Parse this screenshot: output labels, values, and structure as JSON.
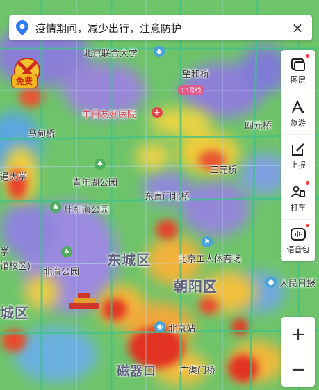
{
  "notice": {
    "text": "疫情期间，减少出行，注意防护",
    "close": "×"
  },
  "badge": {
    "text": "免费"
  },
  "toolbar": [
    {
      "name": "layers",
      "label": "图层",
      "dot": true
    },
    {
      "name": "travel",
      "label": "旅游",
      "dot": false
    },
    {
      "name": "report",
      "label": "上报",
      "dot": false
    },
    {
      "name": "taxi",
      "label": "打车",
      "dot": true
    },
    {
      "name": "voice",
      "label": "语音包",
      "dot": true
    }
  ],
  "zoom": {
    "in": "+",
    "out": "−"
  },
  "places": {
    "buu": "北京联合大学",
    "wanghe": "望和桥",
    "line13": "13号线",
    "hospital": "中日友好医院",
    "sihuan": "四元桥",
    "madian": "马甸桥",
    "tongda": "通大学",
    "qingnianhu": "青年湖公园",
    "sanyuan": "三元桥",
    "dongzhimen": "东直门北桥",
    "shichahai": "什刹海公园",
    "xue": "学",
    "xiaoqu": "馆校区)",
    "beihai": "北海公园",
    "dongcheng": "东城区",
    "gongti": "北京工人体育场",
    "chaoyang": "朝阳区",
    "renminri": "人民日报",
    "chengqu": "城区",
    "bjzhan": "北京站",
    "ciqikou": "磁器口",
    "guangqumen": "广渠门桥"
  },
  "colors": {
    "accent": "#2b7cf6",
    "hospital": "#e0474c"
  }
}
